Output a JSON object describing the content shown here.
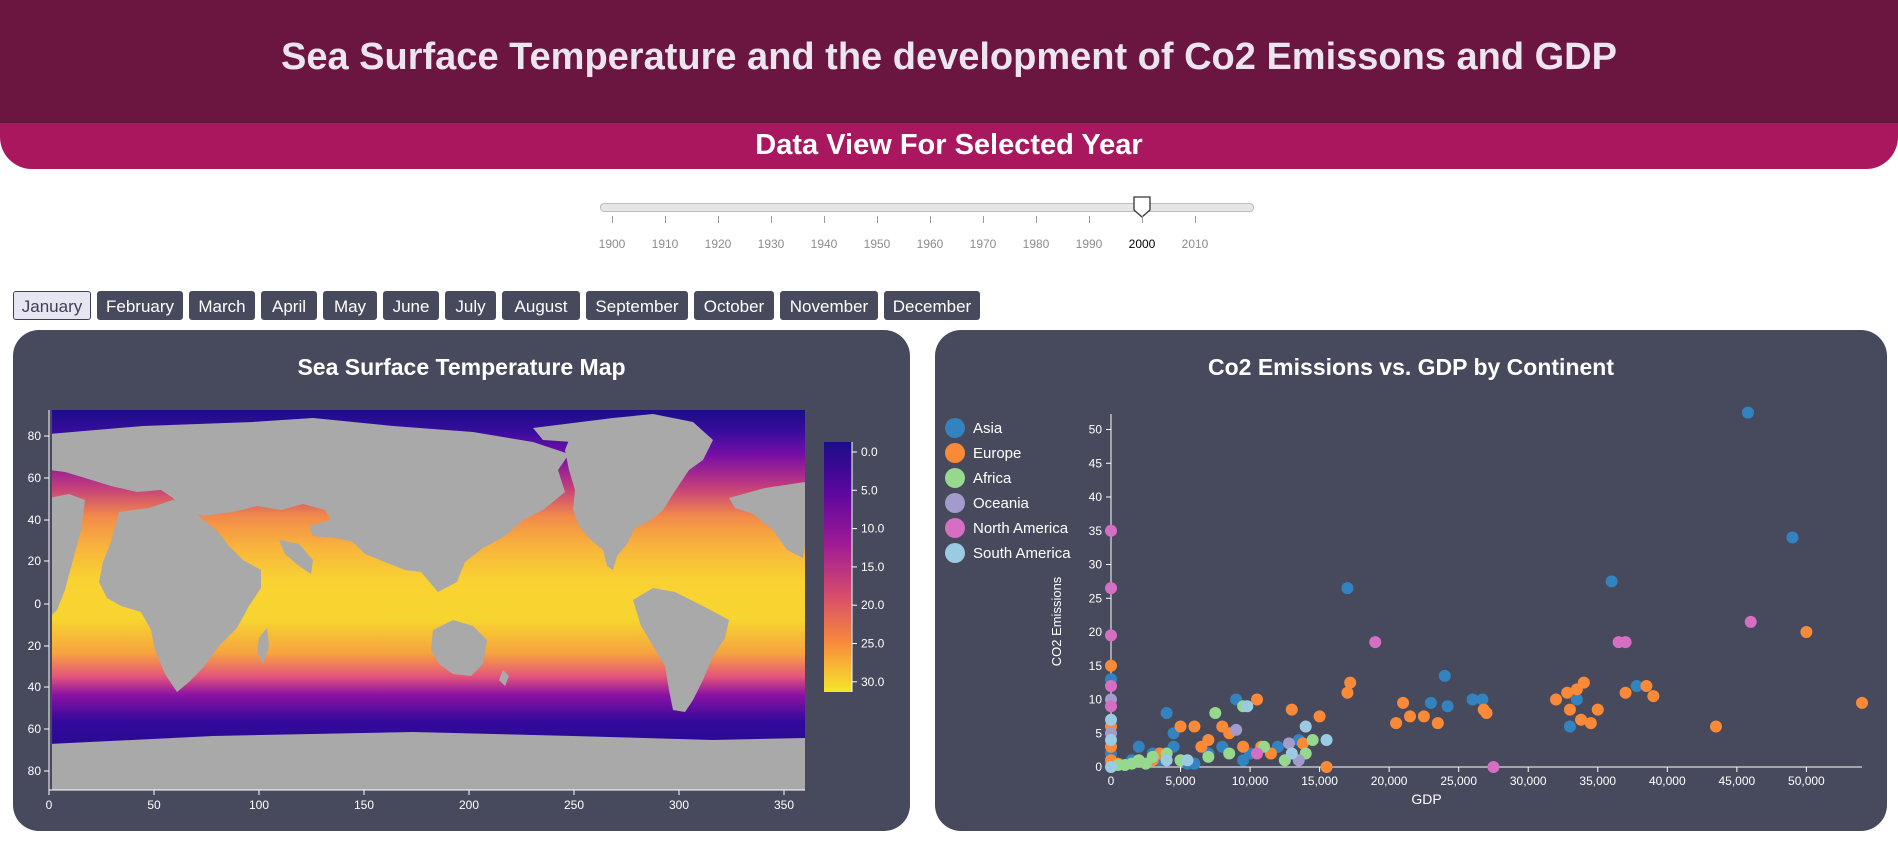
{
  "header": {
    "title": "Sea Surface Temperature and the development of Co2 Emissons and GDP"
  },
  "subheader": {
    "title": "Data View For Selected Year"
  },
  "year_slider": {
    "ticks": [
      "1900",
      "1910",
      "1920",
      "1930",
      "1940",
      "1950",
      "1960",
      "1970",
      "1980",
      "1990",
      "2000",
      "2010"
    ],
    "selected": "2000",
    "min": 1900,
    "max": 2020
  },
  "months": {
    "items": [
      "January",
      "February",
      "March",
      "April",
      "May",
      "June",
      "July",
      "August",
      "September",
      "October",
      "November",
      "December"
    ],
    "selected": "January"
  },
  "map_panel": {
    "title": "Sea Surface Temperature Map",
    "x_ticks": [
      "0",
      "50",
      "100",
      "150",
      "200",
      "250",
      "300",
      "350"
    ],
    "y_ticks": [
      "80",
      "60",
      "40",
      "20",
      "0",
      "20",
      "40",
      "60",
      "80"
    ],
    "colorbar_ticks": [
      "0.0",
      "5.0",
      "10.0",
      "15.0",
      "20.0",
      "25.0",
      "30.0"
    ],
    "land_color": "#a9a9a9",
    "colors": {
      "cold": "#1a0d87",
      "mid": "#c13b7e",
      "warm": "#f5d82d"
    }
  },
  "scatter_panel": {
    "title": "Co2 Emissions vs. GDP by Continent",
    "legend": [
      {
        "name": "Asia",
        "color": "#3383c0"
      },
      {
        "name": "Europe",
        "color": "#fb8a38"
      },
      {
        "name": "Africa",
        "color": "#95d88e"
      },
      {
        "name": "Oceania",
        "color": "#a19ccc"
      },
      {
        "name": "North America",
        "color": "#d66ec3"
      },
      {
        "name": "South America",
        "color": "#9bcbe3"
      }
    ]
  },
  "chart_data": {
    "type": "scatter",
    "title": "Co2 Emissions vs. GDP by Continent",
    "xlabel": "GDP",
    "ylabel": "CO2 Emissions",
    "xlim": [
      0,
      54000
    ],
    "ylim": [
      0,
      52
    ],
    "x_ticks": [
      "0",
      "5,000",
      "10,000",
      "15,000",
      "20,000",
      "25,000",
      "30,000",
      "35,000",
      "40,000",
      "45,000",
      "50,000"
    ],
    "y_ticks": [
      "0",
      "5",
      "10",
      "15",
      "20",
      "25",
      "30",
      "35",
      "40",
      "45",
      "50"
    ],
    "legend_position": "top-left",
    "series": [
      {
        "name": "Asia",
        "color": "#3383c0",
        "points": [
          [
            0,
            0.5
          ],
          [
            0,
            2
          ],
          [
            0,
            13
          ],
          [
            1500,
            1
          ],
          [
            2000,
            3
          ],
          [
            3000,
            2
          ],
          [
            3500,
            1
          ],
          [
            4000,
            8
          ],
          [
            4500,
            5
          ],
          [
            4500,
            3
          ],
          [
            5000,
            1
          ],
          [
            5500,
            0.5
          ],
          [
            6000,
            0.5
          ],
          [
            7000,
            2
          ],
          [
            8000,
            3
          ],
          [
            9000,
            10
          ],
          [
            9500,
            1
          ],
          [
            10000,
            2
          ],
          [
            12000,
            3
          ],
          [
            13500,
            4
          ],
          [
            17000,
            26.5
          ],
          [
            23000,
            9.5
          ],
          [
            24000,
            13.5
          ],
          [
            24200,
            9
          ],
          [
            26000,
            10
          ],
          [
            26700,
            10
          ],
          [
            33000,
            6
          ],
          [
            33500,
            10
          ],
          [
            36000,
            27.5
          ],
          [
            37800,
            12
          ],
          [
            45800,
            52.5
          ],
          [
            49000,
            34
          ]
        ]
      },
      {
        "name": "Europe",
        "color": "#fb8a38",
        "points": [
          [
            0,
            1
          ],
          [
            0,
            3
          ],
          [
            0,
            6
          ],
          [
            0,
            15
          ],
          [
            500,
            0.5
          ],
          [
            3000,
            1
          ],
          [
            3500,
            2
          ],
          [
            5000,
            6
          ],
          [
            6000,
            6
          ],
          [
            6500,
            3
          ],
          [
            7000,
            4
          ],
          [
            8000,
            6
          ],
          [
            8500,
            5
          ],
          [
            9500,
            3
          ],
          [
            10500,
            10
          ],
          [
            10800,
            3
          ],
          [
            11500,
            2
          ],
          [
            13000,
            8.5
          ],
          [
            13800,
            3.5
          ],
          [
            15000,
            7.5
          ],
          [
            15500,
            0
          ],
          [
            17000,
            11
          ],
          [
            17200,
            12.5
          ],
          [
            20500,
            6.5
          ],
          [
            21000,
            9.5
          ],
          [
            21500,
            7.5
          ],
          [
            22500,
            7.5
          ],
          [
            23500,
            6.5
          ],
          [
            26800,
            8.5
          ],
          [
            27000,
            8
          ],
          [
            32000,
            10
          ],
          [
            32800,
            11
          ],
          [
            33000,
            8.5
          ],
          [
            33500,
            11.5
          ],
          [
            34000,
            12.5
          ],
          [
            33800,
            7
          ],
          [
            34500,
            6.5
          ],
          [
            35000,
            8.5
          ],
          [
            37000,
            11
          ],
          [
            38500,
            12
          ],
          [
            39000,
            10.5
          ],
          [
            43500,
            6
          ],
          [
            50000,
            20
          ],
          [
            54000,
            9.5
          ]
        ]
      },
      {
        "name": "Africa",
        "color": "#95d88e",
        "points": [
          [
            500,
            0.3
          ],
          [
            1000,
            0.3
          ],
          [
            1500,
            0.5
          ],
          [
            2000,
            1
          ],
          [
            2500,
            0.5
          ],
          [
            3000,
            1.5
          ],
          [
            4000,
            2
          ],
          [
            5000,
            1
          ],
          [
            7000,
            1.5
          ],
          [
            7500,
            8
          ],
          [
            8500,
            2
          ],
          [
            9500,
            9
          ],
          [
            11000,
            3
          ],
          [
            12500,
            1
          ],
          [
            14000,
            2
          ],
          [
            14500,
            4
          ]
        ]
      },
      {
        "name": "Oceania",
        "color": "#a19ccc",
        "points": [
          [
            0,
            5
          ],
          [
            0,
            10
          ],
          [
            9000,
            5.5
          ],
          [
            12800,
            3.5
          ],
          [
            13500,
            1
          ]
        ]
      },
      {
        "name": "North America",
        "color": "#d66ec3",
        "points": [
          [
            0,
            12
          ],
          [
            0,
            19.5
          ],
          [
            0,
            26.5
          ],
          [
            0,
            35
          ],
          [
            0,
            9
          ],
          [
            10500,
            2
          ],
          [
            19000,
            18.5
          ],
          [
            27500,
            0
          ],
          [
            36500,
            18.5
          ],
          [
            37000,
            18.5
          ],
          [
            46000,
            21.5
          ]
        ]
      },
      {
        "name": "South America",
        "color": "#9bcbe3",
        "points": [
          [
            0,
            0
          ],
          [
            0,
            4
          ],
          [
            0,
            7
          ],
          [
            4000,
            1
          ],
          [
            5500,
            1
          ],
          [
            9800,
            9
          ],
          [
            13000,
            2
          ],
          [
            14000,
            6
          ],
          [
            15500,
            4
          ]
        ]
      }
    ]
  }
}
